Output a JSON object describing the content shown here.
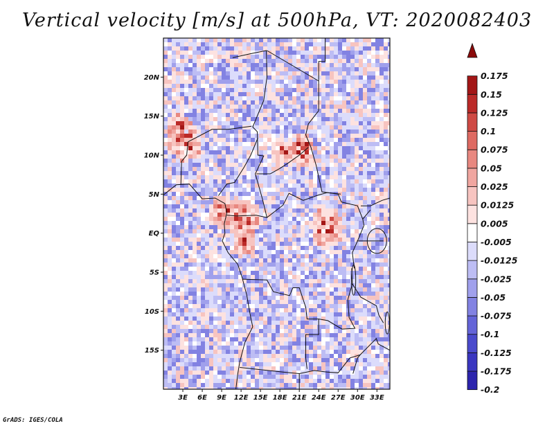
{
  "title": "Vertical velocity [m/s] at 500hPa, VT: 2020082403",
  "credit": "GrADS: IGES/COLA",
  "map": {
    "lon_range": [
      0,
      35
    ],
    "lat_range": [
      -20,
      25
    ],
    "lat_ticks": [
      {
        "value": 20,
        "label": "20N"
      },
      {
        "value": 15,
        "label": "15N"
      },
      {
        "value": 10,
        "label": "10N"
      },
      {
        "value": 5,
        "label": "5N"
      },
      {
        "value": 0,
        "label": "EQ"
      },
      {
        "value": -5,
        "label": "5S"
      },
      {
        "value": -10,
        "label": "10S"
      },
      {
        "value": -15,
        "label": "15S"
      }
    ],
    "lon_ticks": [
      {
        "value": 3,
        "label": "3E"
      },
      {
        "value": 6,
        "label": "6E"
      },
      {
        "value": 9,
        "label": "9E"
      },
      {
        "value": 12,
        "label": "12E"
      },
      {
        "value": 15,
        "label": "15E"
      },
      {
        "value": 18,
        "label": "18E"
      },
      {
        "value": 21,
        "label": "21E"
      },
      {
        "value": 24,
        "label": "24E"
      },
      {
        "value": 27,
        "label": "27E"
      },
      {
        "value": 30,
        "label": "30E"
      },
      {
        "value": 33,
        "label": "33E"
      }
    ]
  },
  "colorbar": {
    "bins": [
      {
        "color": "#1a0f8c",
        "label": "-0.2"
      },
      {
        "color": "#2c24ad",
        "label": "-0.175"
      },
      {
        "color": "#3a36c0",
        "label": "-0.125"
      },
      {
        "color": "#4a4acc",
        "label": "-0.1"
      },
      {
        "color": "#6464d8",
        "label": "-0.075"
      },
      {
        "color": "#8282e2",
        "label": "-0.05"
      },
      {
        "color": "#a0a0ec",
        "label": "-0.025"
      },
      {
        "color": "#bdbdf4",
        "label": "-0.0125"
      },
      {
        "color": "#dcdcfb",
        "label": "-0.005"
      },
      {
        "color": "#ffffff",
        "label": "0.005"
      },
      {
        "color": "#fde2e0",
        "label": "0.0125"
      },
      {
        "color": "#f7c4c0",
        "label": "0.025"
      },
      {
        "color": "#f0a6a0",
        "label": "0.05"
      },
      {
        "color": "#e88880",
        "label": "0.075"
      },
      {
        "color": "#de6a62",
        "label": "0.1"
      },
      {
        "color": "#cf4a44",
        "label": "0.125"
      },
      {
        "color": "#bb2a28",
        "label": "0.15"
      },
      {
        "color": "#a31616",
        "label": "0.175"
      },
      {
        "color": "#8a0a0a",
        "label": ""
      }
    ]
  }
}
